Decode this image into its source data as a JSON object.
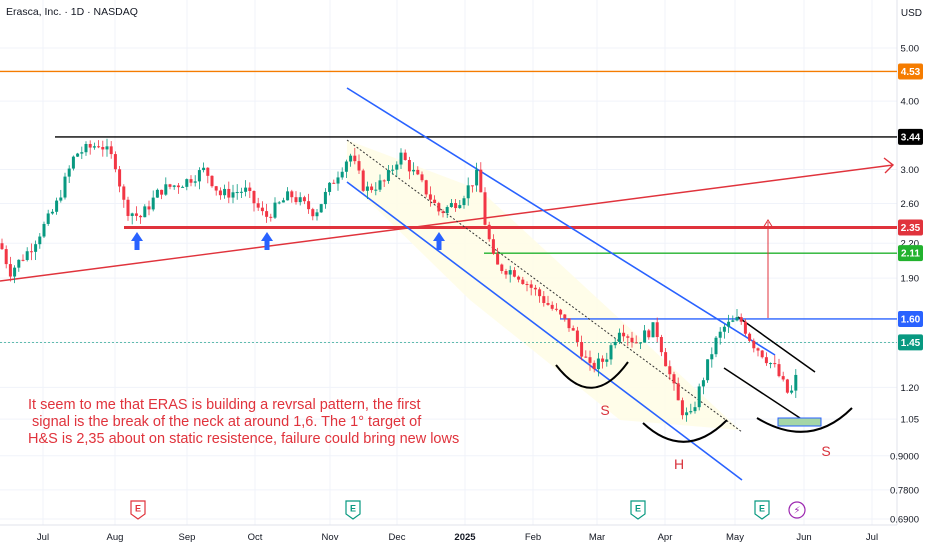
{
  "header": {
    "symbol_line": "Erasca, Inc. · 1D · NASDAQ",
    "currency": "USD"
  },
  "chart_data": {
    "type": "candlestick",
    "y_scale": "log",
    "ylim": [
      0.66,
      5.5
    ],
    "y_ticks": [
      "5.00",
      "4.00",
      "3.00",
      "2.60",
      "2.20",
      "1.90",
      "1.45",
      "1.20",
      "1.05",
      "0.9000",
      "0.7800",
      "0.6900"
    ],
    "x_ticks": [
      "Jul",
      "Aug",
      "Sep",
      "Oct",
      "Nov",
      "Dec",
      "2025",
      "Feb",
      "Mar",
      "Apr",
      "May",
      "Jun",
      "Jul"
    ],
    "levels": [
      {
        "value": 4.53,
        "label": "4.53",
        "color": "#f57c00"
      },
      {
        "value": 3.44,
        "label": "3.44",
        "color": "#000000"
      },
      {
        "value": 2.35,
        "label": "2.35",
        "color": "#e0333c"
      },
      {
        "value": 2.11,
        "label": "2.11",
        "color": "#22b22e"
      },
      {
        "value": 1.6,
        "label": "1.60",
        "color": "#2962ff"
      },
      {
        "value": 1.45,
        "label": "1.45",
        "color": "#089981"
      }
    ],
    "events": [
      {
        "month": "Aug",
        "kind": "earnings",
        "label": "E"
      },
      {
        "month": "Nov",
        "kind": "earnings",
        "label": "E"
      },
      {
        "month": "Mar",
        "kind": "earnings",
        "label": "E"
      },
      {
        "month": "May",
        "kind": "earnings",
        "label": "E"
      },
      {
        "month": "May-late",
        "kind": "dividend-split",
        "label": "⚡"
      }
    ],
    "annotations": {
      "text_lines": [
        "It seem to me that ERAS is building a revrsal pattern, the first",
        " signal is the break of the neck at around 1,6. The 1° target of",
        "H&S is 2,35 about on static resistence, failure could bring new lows"
      ],
      "pattern_labels": [
        "S",
        "H",
        "S"
      ]
    }
  },
  "colors": {
    "up": "#089981",
    "down": "#f23645",
    "channel": "#2962ff",
    "trend": "#e0333c"
  }
}
